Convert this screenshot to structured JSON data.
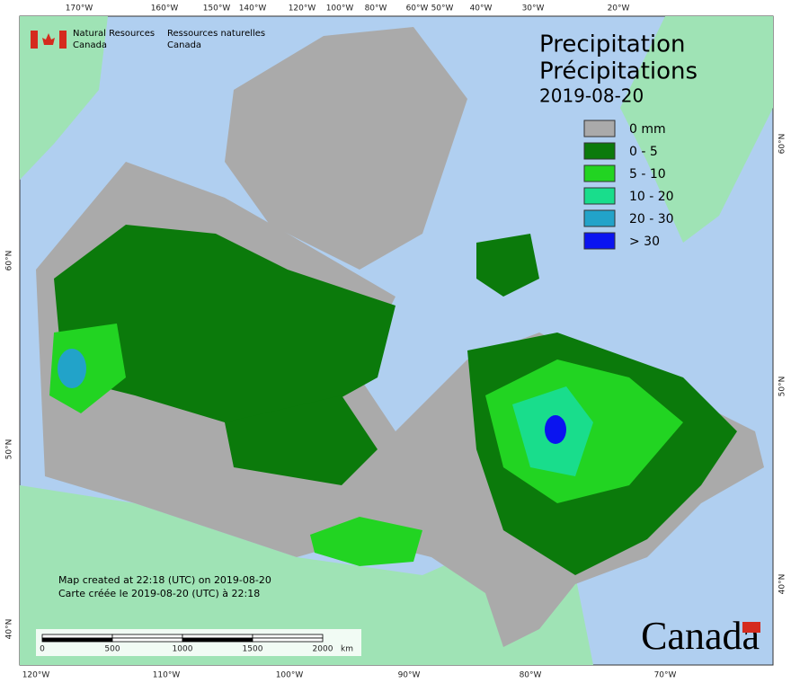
{
  "header": {
    "org_en": "Natural Resources",
    "org_en_country": "Canada",
    "org_fr": "Ressources naturelles",
    "org_fr_country": "Canada"
  },
  "title": {
    "en": "Precipitation",
    "fr": "Précipitations",
    "date": "2019-08-20"
  },
  "legend": [
    {
      "label": "0 mm",
      "color": "#aaaaaa"
    },
    {
      "label": "0 - 5",
      "color": "#0b7a0b"
    },
    {
      "label": "5 - 10",
      "color": "#22d422"
    },
    {
      "label": "10 - 20",
      "color": "#19dd8c"
    },
    {
      "label": "20 - 30",
      "color": "#22a3c9"
    },
    {
      "label": "> 30",
      "color": "#0a14f0"
    }
  ],
  "notes": [
    "Map created at 22:18 (UTC) on 2019-08-20",
    "Carte créée le 2019-08-20 (UTC) à 22:18"
  ],
  "scale": {
    "ticks": [
      0,
      500,
      1000,
      1500,
      2000
    ],
    "unit": "km"
  },
  "top_labels": [
    "170°W",
    "160°W",
    "150°W",
    "140°W",
    "120°W",
    "100°W",
    "80°W",
    "60°W",
    "50°W",
    "40°W",
    "30°W",
    "20°W"
  ],
  "bottom_labels": [
    "120°W",
    "110°W",
    "100°W",
    "90°W",
    "80°W",
    "70°W"
  ],
  "left_labels": [
    "60°N",
    "50°N",
    "40°N"
  ],
  "right_labels": [
    "60°N",
    "50°N",
    "40°N"
  ],
  "wordmark": "Canada"
}
